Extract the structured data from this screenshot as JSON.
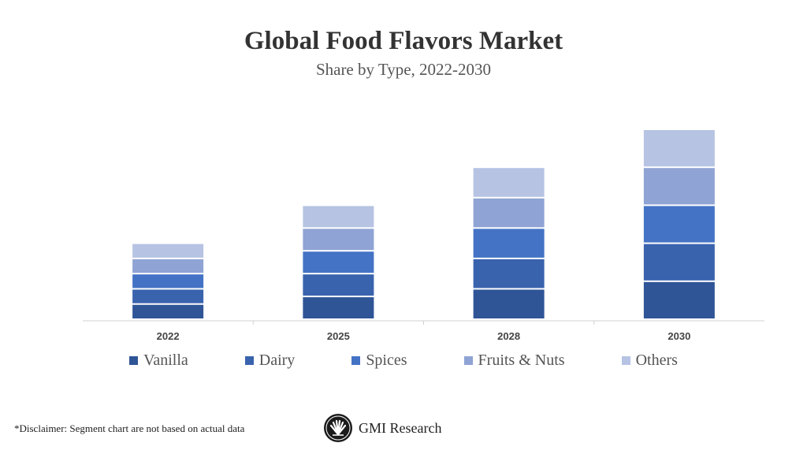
{
  "chart_data": {
    "type": "bar",
    "stacked": true,
    "title": "Global Food Flavors Market",
    "subtitle": "Share by Type, 2022-2030",
    "categories": [
      "2022",
      "2025",
      "2028",
      "2030"
    ],
    "series": [
      {
        "name": "Vanilla",
        "color": "#2f5597",
        "values": [
          2,
          3,
          4,
          5
        ]
      },
      {
        "name": "Dairy",
        "color": "#3a63ae",
        "values": [
          2,
          3,
          4,
          5
        ]
      },
      {
        "name": "Spices",
        "color": "#4473c5",
        "values": [
          2,
          3,
          4,
          5
        ]
      },
      {
        "name": "Fruits & Nuts",
        "color": "#8fa3d4",
        "values": [
          2,
          3,
          4,
          5
        ]
      },
      {
        "name": "Others",
        "color": "#b6c3e3",
        "values": [
          2,
          3,
          4,
          5
        ]
      }
    ],
    "ylim": [
      0,
      25
    ],
    "grid": false,
    "legend": "bottom"
  },
  "footer": {
    "disclaimer": "*Disclaimer:  Segment chart are not based on actual data",
    "brand": "GMI Research"
  }
}
